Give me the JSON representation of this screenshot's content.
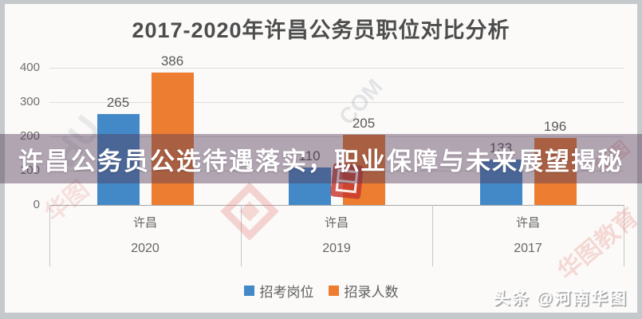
{
  "title": "2017-2020年许昌公务员职位对比分析",
  "banner": {
    "text": "许昌公务员公选待遇落实，职业保障与未来展望揭秘"
  },
  "watermarks": {
    "bottom_right": "头条 @河南华图",
    "left_letters": "HU",
    "mid_letters": "COM",
    "pink_left": "华图",
    "pink_right": "华图教育",
    "pink_top_right": "华图"
  },
  "colors": {
    "series_blue": "#4389c8",
    "series_orange": "#ed7d31",
    "banner_bg": "rgba(82,58,86,0.44)",
    "stamp_red": "rgba(198,55,45,0.82)"
  },
  "chart_data": {
    "type": "bar",
    "title": "2017-2020年许昌公务员职位对比分析",
    "group_label": "许昌",
    "categories": [
      "2020",
      "2019",
      "2017"
    ],
    "series": [
      {
        "name": "招考岗位",
        "color": "#4389c8",
        "values": [
          265,
          110,
          133
        ]
      },
      {
        "name": "招录人数",
        "color": "#ed7d31",
        "values": [
          386,
          205,
          196
        ]
      }
    ],
    "ylim": [
      0,
      400
    ],
    "yticks": [
      0,
      100,
      200,
      300,
      400
    ],
    "grid": true,
    "legend_position": "bottom"
  }
}
